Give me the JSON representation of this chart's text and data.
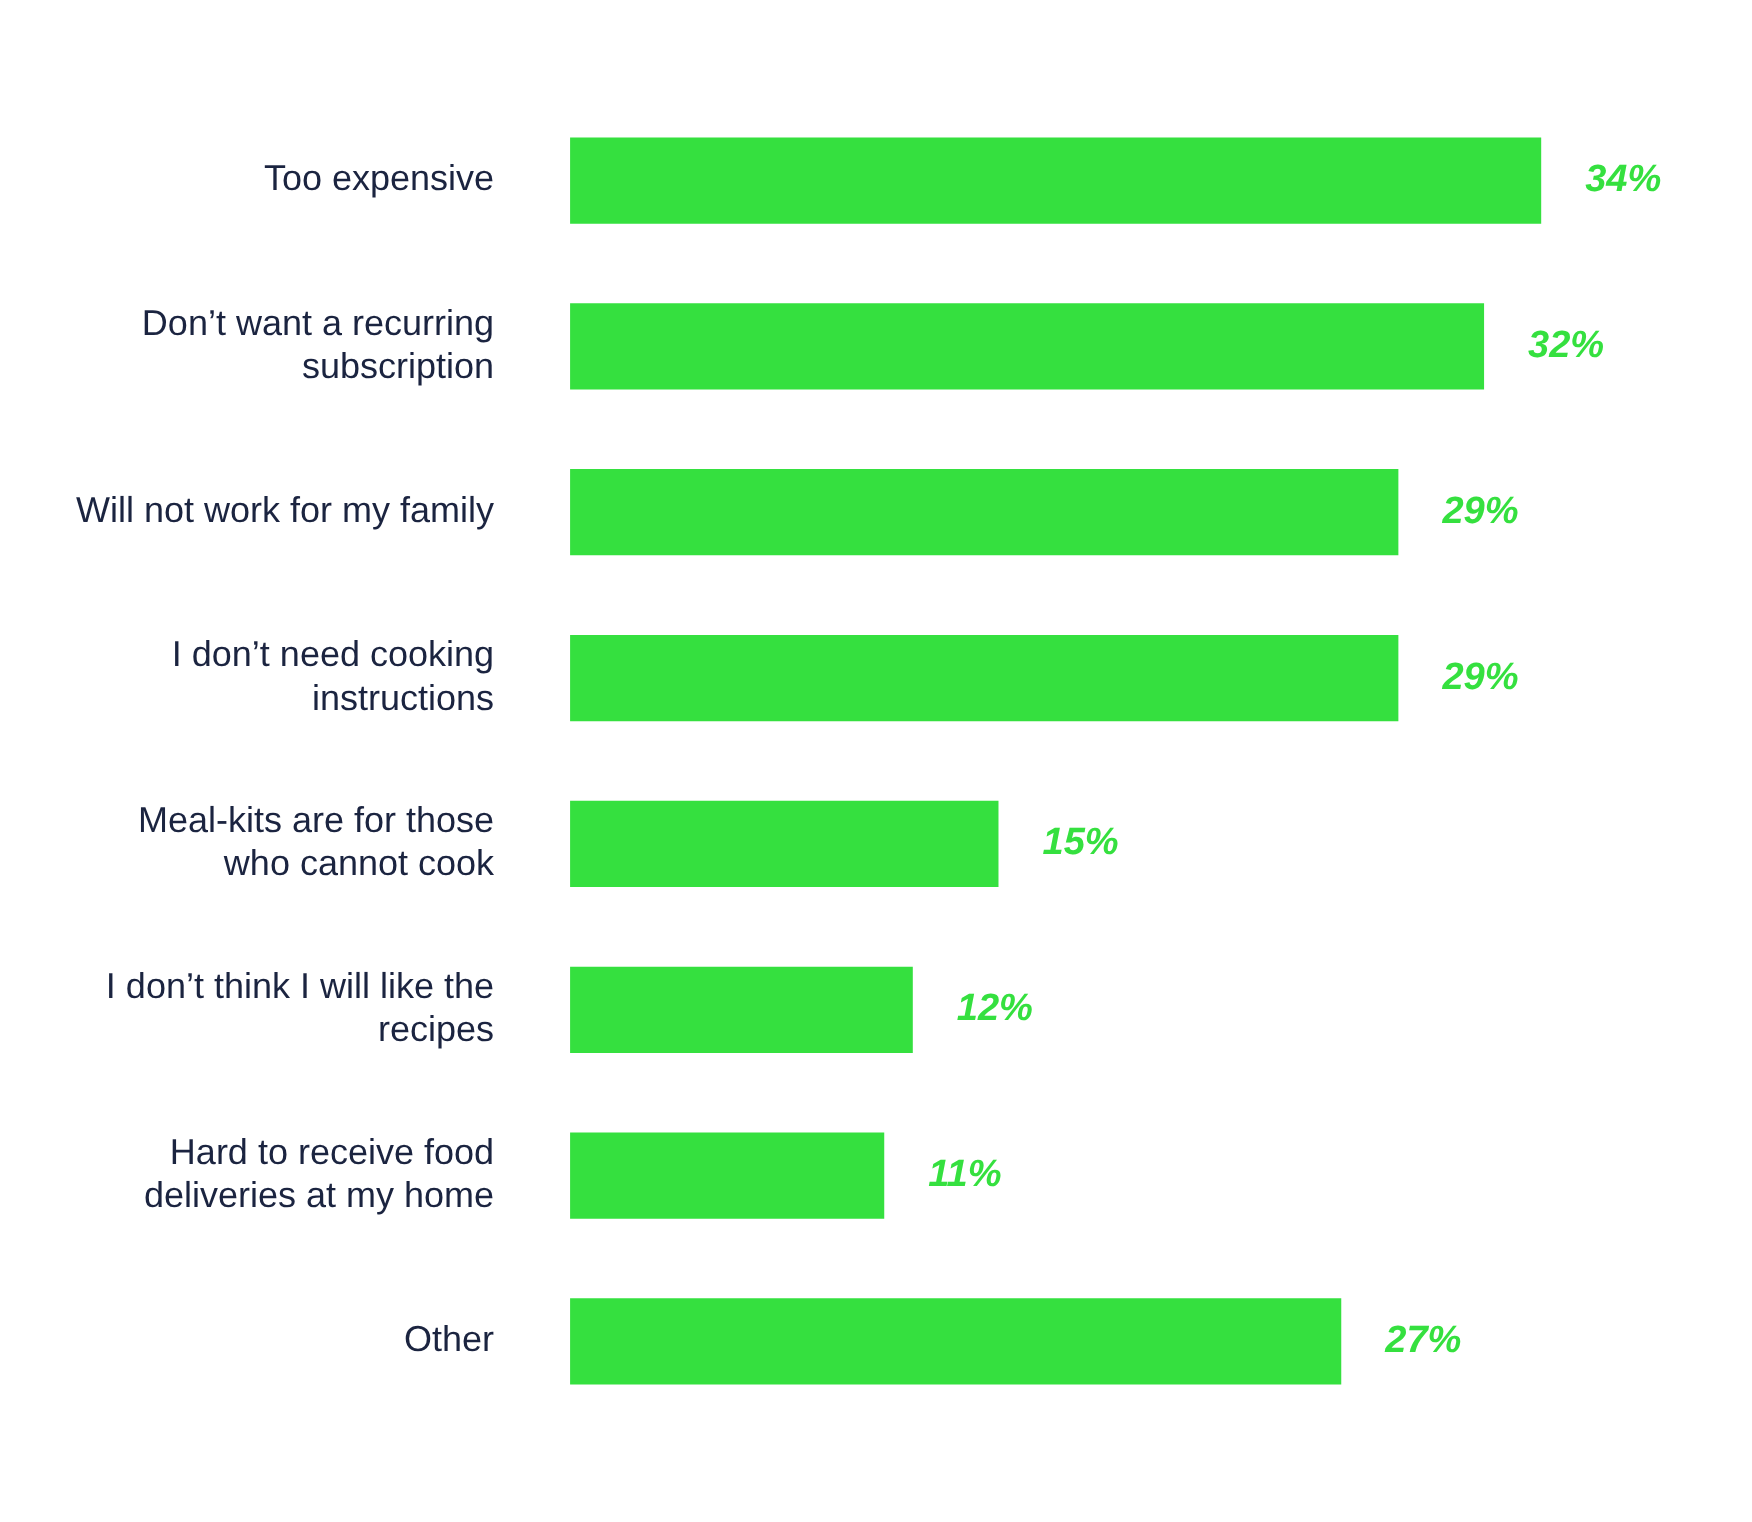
{
  "chart_data": {
    "type": "bar",
    "orientation": "horizontal",
    "categories": [
      "Too expensive",
      "Don’t want a recurring subscription",
      "Will not work for my family",
      "I don’t need cooking instructions",
      "Meal-kits are for those who cannot cook",
      "I don’t think I will like the recipes",
      "Hard to receive food deliveries at my home",
      "Other"
    ],
    "values": [
      34,
      32,
      29,
      29,
      15,
      12,
      11,
      27
    ],
    "value_labels": [
      "34%",
      "32%",
      "29%",
      "29%",
      "15%",
      "12%",
      "11%",
      "27%"
    ],
    "color": "#35e03f",
    "tick_labels": "y"
  }
}
